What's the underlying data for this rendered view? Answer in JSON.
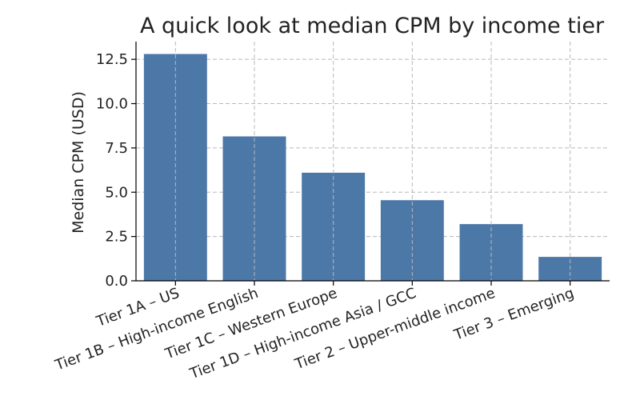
{
  "chart_data": {
    "type": "bar",
    "title": "A quick look at median CPM by income tier",
    "xlabel": "",
    "ylabel": "Median CPM (USD)",
    "categories": [
      "Tier 1A – US",
      "Tier 1B – High-income English",
      "Tier 1C – Western Europe",
      "Tier 1D – High-income Asia / GCC",
      "Tier 2 – Upper-middle income",
      "Tier 3 – Emerging"
    ],
    "values": [
      12.8,
      8.15,
      6.1,
      4.55,
      3.2,
      1.35
    ],
    "ylim": [
      0,
      13.5
    ],
    "yticks": [
      0.0,
      2.5,
      5.0,
      7.5,
      10.0,
      12.5
    ],
    "ytick_labels": [
      "0.0",
      "2.5",
      "5.0",
      "7.5",
      "10.0",
      "12.5"
    ],
    "grid": true,
    "bar_color": "#4c78a8"
  }
}
